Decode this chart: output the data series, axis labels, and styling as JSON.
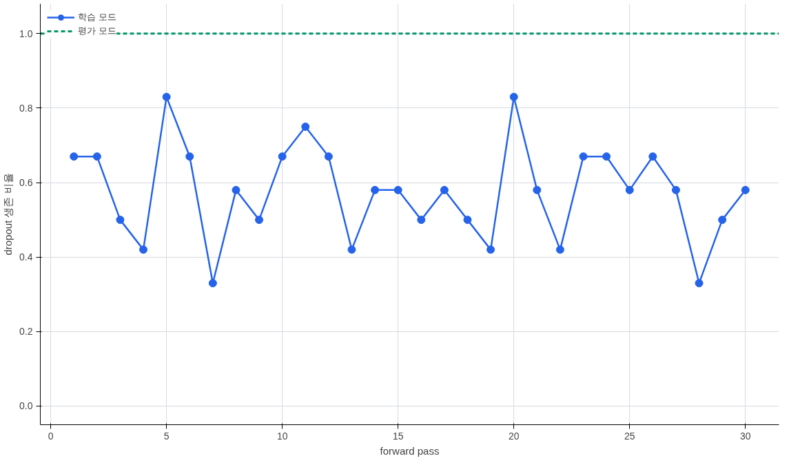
{
  "chart_data": {
    "type": "line",
    "xlabel": "forward pass",
    "ylabel": "dropout 생존 비율",
    "x": [
      1,
      2,
      3,
      4,
      5,
      6,
      7,
      8,
      9,
      10,
      11,
      12,
      13,
      14,
      15,
      16,
      17,
      18,
      19,
      20,
      21,
      22,
      23,
      24,
      25,
      26,
      27,
      28,
      29,
      30
    ],
    "series": [
      {
        "name": "학습 모드",
        "color": "#2563eb",
        "values": [
          0.67,
          0.67,
          0.5,
          0.42,
          0.83,
          0.67,
          0.33,
          0.58,
          0.5,
          0.67,
          0.75,
          0.67,
          0.42,
          0.58,
          0.58,
          0.5,
          0.58,
          0.5,
          0.42,
          0.83,
          0.58,
          0.42,
          0.67,
          0.67,
          0.58,
          0.67,
          0.58,
          0.33,
          0.5,
          0.58
        ]
      }
    ],
    "ref_lines": [
      {
        "axis": "y",
        "value": 1.0,
        "label": "평가 모드",
        "color": "#059669",
        "line_style": "dashed"
      }
    ],
    "marker": "circle",
    "line_style": "solid",
    "xlim": [
      -0.45,
      31.45
    ],
    "ylim": [
      -0.05,
      1.08
    ],
    "xticks": [
      0,
      5,
      10,
      15,
      20,
      25,
      30
    ],
    "yticks": [
      {
        "value": 0,
        "label": "0.0"
      },
      {
        "value": 0.2,
        "label": "0.2"
      },
      {
        "value": 0.4,
        "label": "0.4"
      },
      {
        "value": 0.6,
        "label": "0.6"
      },
      {
        "value": 0.8,
        "label": "0.8"
      },
      {
        "value": 1.0,
        "label": "1.0"
      }
    ],
    "grid": true,
    "legend": "top left"
  }
}
